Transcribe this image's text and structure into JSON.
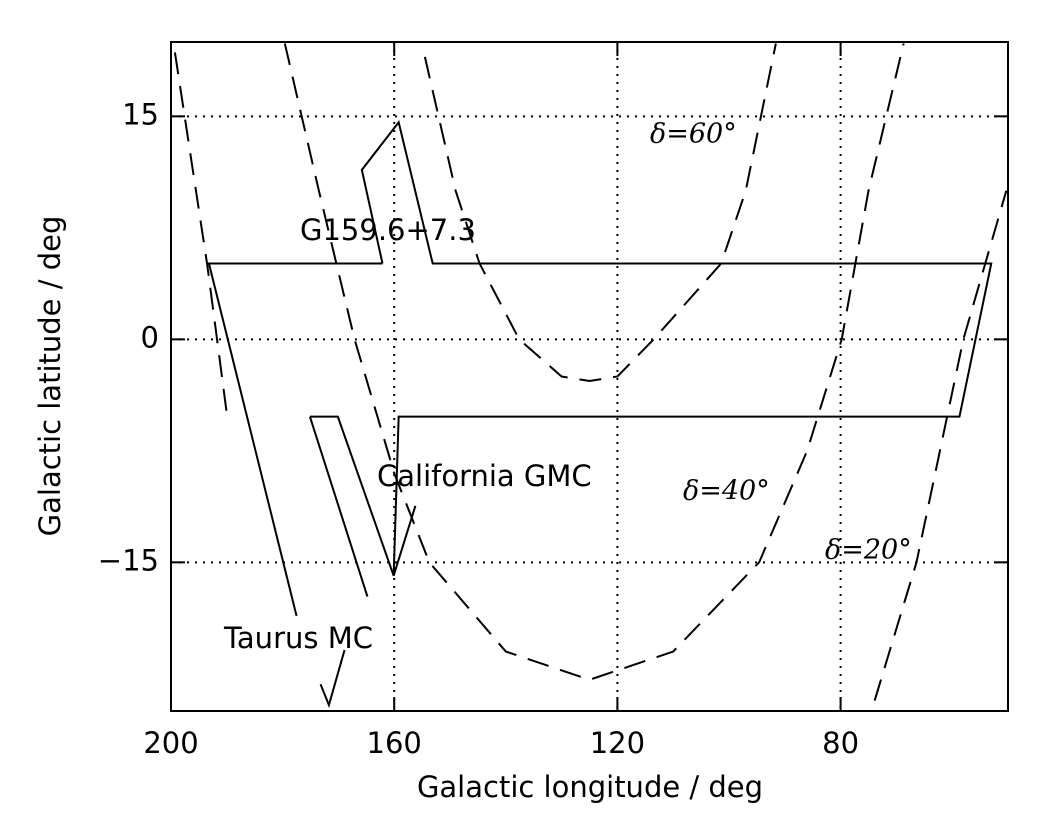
{
  "chart_data": {
    "type": "line",
    "xlabel": "Galactic longitude / deg",
    "ylabel": "Galactic latitude / deg",
    "xlim": [
      200,
      50
    ],
    "ylim": [
      -25,
      20
    ],
    "xticks": [
      200,
      160,
      120,
      80
    ],
    "yticks": [
      15,
      0,
      {
        "value": -15,
        "label": "−15"
      }
    ],
    "grid": true,
    "series": [
      {
        "color": "#000000",
        "style": "solid",
        "x": [
          162.1,
          193.2,
          177.5,
          null,
          162.1,
          165.8,
          159.2,
          153.1,
          53.0,
          58.7,
          159.2,
          160.1,
          156.2,
          null,
          175.1,
          170.1,
          160.1,
          null,
          175.1,
          164.8,
          null,
          173.2,
          171.7,
          168.9
        ],
        "values": [
          5.1,
          5.1,
          -18.6,
          null,
          5.1,
          11.4,
          14.6,
          5.1,
          5.1,
          -5.2,
          -5.2,
          -15.9,
          -11.2,
          null,
          -5.2,
          -5.2,
          -15.9,
          null,
          -5.2,
          -17.3,
          null,
          -23.2,
          -24.6,
          -20.9
        ]
      },
      {
        "color": "#000000",
        "style": "dashed",
        "x": [
          154.5,
          149,
          144.7,
          137.6,
          130,
          125,
          120,
          113.5,
          101.4,
          97,
          91.6
        ],
        "values": [
          19,
          10,
          5.1,
          0,
          -2.5,
          -2.8,
          -2.5,
          0,
          5.1,
          10,
          19.9
        ]
      },
      {
        "color": "#000000",
        "style": "dashed",
        "x": [
          179.6,
          173.5,
          167.1,
          160,
          153.7,
          140,
          125,
          110,
          94.6,
          86,
          79.8,
          75,
          68.7
        ],
        "values": [
          19.9,
          10,
          0,
          -9,
          -15,
          -21,
          -22.9,
          -21,
          -15,
          -7.5,
          0,
          10,
          19.9
        ]
      },
      {
        "color": "#000000",
        "style": "dashed",
        "x": [
          199.3,
          193.5,
          190,
          null,
          73.9,
          66.4,
          58,
          50.3
        ],
        "values": [
          19.3,
          5,
          -5,
          null,
          -24.3,
          -15,
          0,
          10
        ]
      }
    ],
    "annotations": [
      "G159.6+7.3",
      "California GMC",
      "Taurus MC",
      "δ=60°",
      "δ=40°",
      "δ=20°"
    ]
  }
}
